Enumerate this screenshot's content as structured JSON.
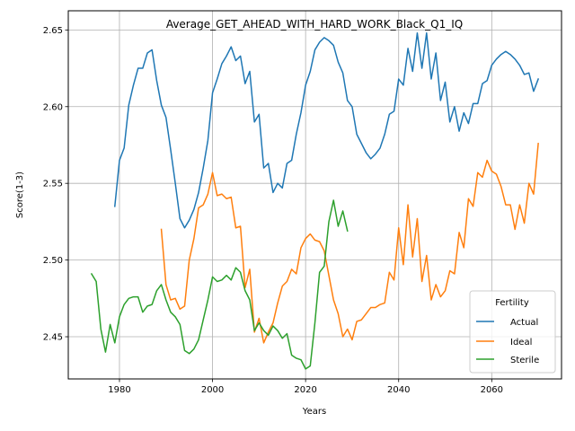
{
  "chart_data": {
    "type": "line",
    "title": "Average_GET_AHEAD_WITH_HARD_WORK_Black_Q1_IQ",
    "xlabel": "Years",
    "ylabel": "Score(1-3)",
    "xlim": [
      1969,
      2075
    ],
    "ylim": [
      2.4225,
      2.6625
    ],
    "xticks": [
      1980,
      2000,
      2020,
      2040,
      2060
    ],
    "yticks": [
      2.45,
      2.5,
      2.55,
      2.6,
      2.65
    ],
    "xtick_labels": [
      "1980",
      "2000",
      "2020",
      "2040",
      "2060"
    ],
    "ytick_labels": [
      "2.45",
      "2.50",
      "2.55",
      "2.60",
      "2.65"
    ],
    "grid": true,
    "legend": {
      "title": "Fertility",
      "position": "bottom-right"
    },
    "series": [
      {
        "name": "Actual",
        "color": "#1f77b4",
        "x": [
          1979,
          1980,
          1981,
          1982,
          1983,
          1984,
          1985,
          1986,
          1987,
          1988,
          1989,
          1990,
          1991,
          1992,
          1993,
          1994,
          1995,
          1996,
          1997,
          1998,
          1999,
          2000,
          2001,
          2002,
          2003,
          2004,
          2005,
          2006,
          2007,
          2008,
          2009,
          2010,
          2011,
          2012,
          2013,
          2014,
          2015,
          2016,
          2017,
          2018,
          2019,
          2020,
          2021,
          2022,
          2023,
          2024,
          2025,
          2026,
          2027,
          2028,
          2029,
          2030,
          2031,
          2032,
          2033,
          2034,
          2035,
          2036,
          2037,
          2038,
          2039,
          2040,
          2041,
          2042,
          2043,
          2044,
          2045,
          2046,
          2047,
          2048,
          2049,
          2050,
          2051,
          2052,
          2053,
          2054,
          2055,
          2056,
          2057,
          2058,
          2059,
          2060,
          2061,
          2062,
          2063,
          2064,
          2065,
          2066,
          2067,
          2068,
          2069,
          2070
        ],
        "y": [
          2.535,
          2.565,
          2.573,
          2.601,
          2.614,
          2.625,
          2.625,
          2.635,
          2.637,
          2.617,
          2.601,
          2.593,
          2.572,
          2.55,
          2.527,
          2.521,
          2.526,
          2.533,
          2.544,
          2.56,
          2.578,
          2.609,
          2.618,
          2.628,
          2.633,
          2.639,
          2.63,
          2.633,
          2.615,
          2.623,
          2.59,
          2.595,
          2.56,
          2.563,
          2.544,
          2.55,
          2.547,
          2.563,
          2.565,
          2.582,
          2.596,
          2.614,
          2.623,
          2.637,
          2.642,
          2.645,
          2.643,
          2.64,
          2.629,
          2.622,
          2.604,
          2.6,
          2.582,
          2.576,
          2.57,
          2.566,
          2.569,
          2.573,
          2.582,
          2.595,
          2.597,
          2.618,
          2.614,
          2.638,
          2.623,
          2.648,
          2.625,
          2.648,
          2.618,
          2.635,
          2.604,
          2.616,
          2.59,
          2.6,
          2.584,
          2.596,
          2.589,
          2.602,
          2.602,
          2.615,
          2.617,
          2.627,
          2.631,
          2.634,
          2.636,
          2.634,
          2.631,
          2.627,
          2.621,
          2.622,
          2.61,
          2.618
        ]
      },
      {
        "name": "Ideal",
        "color": "#ff7f0e",
        "x": [
          1989,
          1990,
          1991,
          1992,
          1993,
          1994,
          1995,
          1996,
          1997,
          1998,
          1999,
          2000,
          2001,
          2002,
          2003,
          2004,
          2005,
          2006,
          2007,
          2008,
          2009,
          2010,
          2011,
          2012,
          2013,
          2014,
          2015,
          2016,
          2017,
          2018,
          2019,
          2020,
          2021,
          2022,
          2023,
          2024,
          2025,
          2026,
          2027,
          2028,
          2029,
          2030,
          2031,
          2032,
          2033,
          2034,
          2035,
          2036,
          2037,
          2038,
          2039,
          2040,
          2041,
          2042,
          2043,
          2044,
          2045,
          2046,
          2047,
          2048,
          2049,
          2050,
          2051,
          2052,
          2053,
          2054,
          2055,
          2056,
          2057,
          2058,
          2059,
          2060,
          2061,
          2062,
          2063,
          2064,
          2065,
          2066,
          2067,
          2068,
          2069,
          2070
        ],
        "y": [
          2.52,
          2.484,
          2.474,
          2.475,
          2.468,
          2.47,
          2.5,
          2.514,
          2.534,
          2.536,
          2.543,
          2.557,
          2.542,
          2.543,
          2.54,
          2.541,
          2.521,
          2.522,
          2.482,
          2.494,
          2.453,
          2.462,
          2.446,
          2.453,
          2.459,
          2.472,
          2.483,
          2.486,
          2.494,
          2.491,
          2.508,
          2.514,
          2.517,
          2.513,
          2.512,
          2.506,
          2.49,
          2.474,
          2.465,
          2.45,
          2.455,
          2.448,
          2.46,
          2.461,
          2.465,
          2.469,
          2.469,
          2.471,
          2.472,
          2.492,
          2.487,
          2.521,
          2.497,
          2.536,
          2.502,
          2.527,
          2.486,
          2.503,
          2.474,
          2.484,
          2.476,
          2.48,
          2.493,
          2.491,
          2.518,
          2.508,
          2.54,
          2.535,
          2.557,
          2.554,
          2.565,
          2.558,
          2.556,
          2.548,
          2.536,
          2.536,
          2.52,
          2.536,
          2.524,
          2.55,
          2.543,
          2.576
        ]
      },
      {
        "name": "Sterile",
        "color": "#2ca02c",
        "x": [
          1974,
          1975,
          1976,
          1977,
          1978,
          1979,
          1980,
          1981,
          1982,
          1983,
          1984,
          1985,
          1986,
          1987,
          1988,
          1989,
          1990,
          1991,
          1992,
          1993,
          1994,
          1995,
          1996,
          1997,
          1998,
          1999,
          2000,
          2001,
          2002,
          2003,
          2004,
          2005,
          2006,
          2007,
          2008,
          2009,
          2010,
          2011,
          2012,
          2013,
          2014,
          2015,
          2016,
          2017,
          2018,
          2019,
          2020,
          2021,
          2022,
          2023,
          2024,
          2025,
          2026,
          2027,
          2028,
          2029
        ],
        "y": [
          2.491,
          2.486,
          2.455,
          2.44,
          2.458,
          2.446,
          2.463,
          2.471,
          2.475,
          2.476,
          2.476,
          2.466,
          2.47,
          2.471,
          2.48,
          2.484,
          2.474,
          2.466,
          2.463,
          2.458,
          2.441,
          2.439,
          2.442,
          2.448,
          2.461,
          2.474,
          2.489,
          2.486,
          2.487,
          2.49,
          2.487,
          2.495,
          2.492,
          2.48,
          2.474,
          2.454,
          2.459,
          2.454,
          2.451,
          2.457,
          2.454,
          2.449,
          2.452,
          2.438,
          2.436,
          2.435,
          2.429,
          2.431,
          2.459,
          2.492,
          2.496,
          2.525,
          2.539,
          2.522,
          2.532,
          2.519
        ]
      }
    ]
  }
}
